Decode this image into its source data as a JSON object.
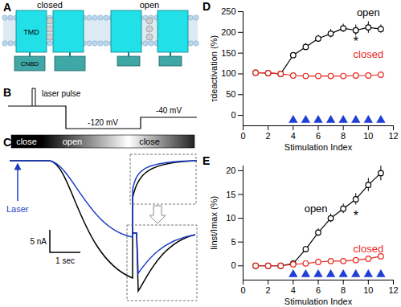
{
  "panels": {
    "A": {
      "title": "A",
      "states": [
        "closed",
        "open"
      ],
      "domain_labels": [
        "TMD",
        "CNBD"
      ]
    },
    "B": {
      "title": "B",
      "stimulus": "laser pulse",
      "voltages": [
        "-120 mV",
        "-40 mV"
      ]
    },
    "C": {
      "title": "C",
      "states": [
        "close",
        "open",
        "close"
      ],
      "stimulus": "Laser",
      "scale_bars": [
        "5 nA",
        "1 sec"
      ]
    }
  },
  "chart_data": [
    {
      "type": "line",
      "title": "D",
      "x_label": "Stimulation Index",
      "y_label": "τdeactivation (%)",
      "x": [
        1,
        2,
        3,
        4,
        5,
        6,
        7,
        8,
        9,
        10,
        11
      ],
      "series": [
        {
          "name": "open",
          "color": "#000000",
          "marker": "circle",
          "values": [
            103,
            102,
            100,
            145,
            165,
            185,
            197,
            210,
            205,
            212,
            208
          ],
          "errors": [
            4,
            3,
            3,
            6,
            8,
            8,
            10,
            10,
            13,
            14,
            10
          ]
        },
        {
          "name": "closed",
          "color": "#e8281e",
          "marker": "circle",
          "values": [
            103,
            102,
            100,
            96,
            95,
            95,
            95,
            95,
            96,
            96,
            98
          ],
          "errors": [
            3,
            3,
            3,
            3,
            3,
            3,
            3,
            3,
            3,
            3,
            4
          ]
        }
      ],
      "annotations": [
        {
          "text": "*",
          "x": 9,
          "y": 178,
          "color": "#000000"
        }
      ],
      "stimuli": {
        "x": [
          4,
          5,
          6,
          7,
          8,
          9,
          10,
          11
        ],
        "color": "#1f3fd6",
        "marker": "triangle"
      },
      "xlim": [
        0,
        12
      ],
      "xticks": [
        0,
        2,
        4,
        6,
        8,
        10,
        12
      ],
      "ylim": [
        -25,
        250
      ],
      "yticks": [
        0,
        50,
        100,
        150,
        200,
        250
      ],
      "grid": false
    },
    {
      "type": "line",
      "title": "E",
      "x_label": "Stimulation Index",
      "y_label": "Iinst/Imax (%)",
      "x": [
        1,
        2,
        3,
        4,
        5,
        6,
        7,
        8,
        9,
        10,
        11
      ],
      "series": [
        {
          "name": "open",
          "color": "#000000",
          "marker": "circle",
          "values": [
            0,
            0,
            0,
            0.5,
            3.5,
            7,
            10,
            12,
            14,
            17,
            19.5
          ],
          "errors": [
            0.2,
            0.2,
            0.2,
            0.4,
            0.6,
            0.8,
            0.9,
            1,
            1.2,
            1.4,
            1.6
          ]
        },
        {
          "name": "closed",
          "color": "#e8281e",
          "marker": "circle",
          "values": [
            0,
            0,
            0,
            0.3,
            0.5,
            0.8,
            1,
            1,
            1.2,
            1.5,
            2
          ],
          "errors": [
            0.1,
            0.1,
            0.1,
            0.2,
            0.2,
            0.2,
            0.2,
            0.2,
            0.3,
            0.3,
            0.3
          ]
        }
      ],
      "annotations": [
        {
          "text": "*",
          "x": 9,
          "y": 10.5,
          "color": "#000000"
        }
      ],
      "stimuli": {
        "x": [
          4,
          5,
          6,
          7,
          8,
          9,
          10,
          11
        ],
        "color": "#1f3fd6",
        "marker": "triangle"
      },
      "xlim": [
        0,
        12
      ],
      "xticks": [
        0,
        2,
        4,
        6,
        8,
        10,
        12
      ],
      "ylim": [
        -3,
        21
      ],
      "yticks": [
        0,
        5,
        10,
        15,
        20
      ],
      "grid": false
    }
  ]
}
